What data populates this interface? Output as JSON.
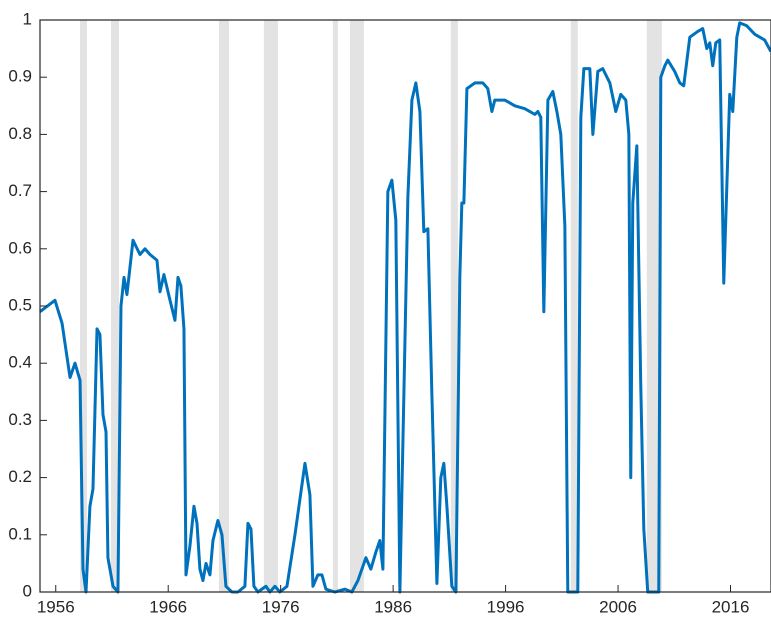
{
  "chart_data": {
    "type": "line",
    "x": [
      1954.6,
      1955.93,
      1956.56,
      1957.27,
      1957.71,
      1958.16,
      1958.42,
      1958.69,
      1959.04,
      1959.31,
      1959.67,
      1959.93,
      1960.2,
      1960.47,
      1960.64,
      1961.09,
      1961.53,
      1961.8,
      1962.07,
      1962.33,
      1962.87,
      1963.49,
      1963.93,
      1964.38,
      1965.0,
      1965.27,
      1965.62,
      1966.16,
      1966.6,
      1966.87,
      1967.13,
      1967.4,
      1967.58,
      1967.93,
      1968.29,
      1968.56,
      1968.82,
      1969.09,
      1969.36,
      1969.71,
      1969.98,
      1970.42,
      1970.78,
      1971.13,
      1971.67,
      1972.2,
      1972.82,
      1973.09,
      1973.36,
      1973.62,
      1973.98,
      1974.33,
      1974.69,
      1975.04,
      1975.49,
      1975.93,
      1976.56,
      1977.27,
      1978.16,
      1978.6,
      1978.87,
      1979.31,
      1979.67,
      1980.02,
      1980.82,
      1981.71,
      1982.33,
      1982.87,
      1983.58,
      1984.02,
      1984.47,
      1984.82,
      1985.09,
      1985.53,
      1985.89,
      1986.24,
      1986.6,
      1987.31,
      1987.67,
      1988.02,
      1988.38,
      1988.73,
      1989.09,
      1989.44,
      1989.89,
      1990.24,
      1990.51,
      1990.78,
      1991.22,
      1991.58,
      1991.93,
      1992.11,
      1992.29,
      1992.56,
      1993.27,
      1993.98,
      1994.42,
      1994.78,
      1995.04,
      1995.93,
      1996.38,
      1996.82,
      1997.71,
      1998.6,
      1998.87,
      1999.13,
      1999.4,
      1999.76,
      2000.2,
      2000.56,
      2000.91,
      2001.27,
      2001.53,
      2002.42,
      2002.69,
      2002.96,
      2003.49,
      2003.76,
      2004.2,
      2004.64,
      2005.27,
      2005.8,
      2006.24,
      2006.69,
      2006.96,
      2007.13,
      2007.31,
      2007.67,
      2008.02,
      2008.29,
      2008.64,
      2009.27,
      2009.62,
      2009.8,
      2010.16,
      2010.42,
      2011.04,
      2011.49,
      2011.84,
      2012.38,
      2013.09,
      2013.53,
      2013.89,
      2014.16,
      2014.42,
      2014.69,
      2015.04,
      2015.4,
      2015.93,
      2016.2,
      2016.56,
      2016.82,
      2017.44,
      2018.16,
      2019.04,
      2019.58
    ],
    "series": [
      {
        "color": "#0072bd",
        "values": [
          0.49,
          0.51,
          0.47,
          0.375,
          0.4,
          0.37,
          0.04,
          0.0,
          0.15,
          0.18,
          0.46,
          0.45,
          0.31,
          0.28,
          0.06,
          0.01,
          0.0,
          0.5,
          0.55,
          0.52,
          0.615,
          0.59,
          0.6,
          0.59,
          0.58,
          0.525,
          0.555,
          0.51,
          0.475,
          0.55,
          0.535,
          0.46,
          0.03,
          0.08,
          0.15,
          0.12,
          0.04,
          0.02,
          0.05,
          0.03,
          0.09,
          0.125,
          0.1,
          0.01,
          0.0,
          0.0,
          0.01,
          0.12,
          0.11,
          0.01,
          0.0,
          0.005,
          0.01,
          0.0,
          0.01,
          0.0,
          0.01,
          0.1,
          0.225,
          0.17,
          0.01,
          0.03,
          0.03,
          0.005,
          0.0,
          0.005,
          0.0,
          0.02,
          0.06,
          0.04,
          0.07,
          0.09,
          0.04,
          0.7,
          0.72,
          0.65,
          0.0,
          0.69,
          0.86,
          0.89,
          0.84,
          0.63,
          0.635,
          0.35,
          0.015,
          0.2,
          0.225,
          0.15,
          0.01,
          0.0,
          0.55,
          0.68,
          0.68,
          0.88,
          0.89,
          0.89,
          0.88,
          0.84,
          0.86,
          0.86,
          0.855,
          0.85,
          0.845,
          0.835,
          0.84,
          0.83,
          0.49,
          0.86,
          0.875,
          0.84,
          0.8,
          0.64,
          0.0,
          0.0,
          0.83,
          0.915,
          0.915,
          0.8,
          0.91,
          0.915,
          0.89,
          0.84,
          0.87,
          0.86,
          0.8,
          0.2,
          0.68,
          0.78,
          0.36,
          0.11,
          0.0,
          0.0,
          0.0,
          0.9,
          0.92,
          0.93,
          0.91,
          0.89,
          0.885,
          0.97,
          0.98,
          0.985,
          0.95,
          0.96,
          0.92,
          0.96,
          0.965,
          0.54,
          0.87,
          0.84,
          0.97,
          0.995,
          0.99,
          0.975,
          0.965,
          0.945
        ]
      }
    ],
    "shaded_periods": [
      [
        1958.16,
        1958.78
      ],
      [
        1960.91,
        1961.62
      ],
      [
        1970.51,
        1971.4
      ],
      [
        1974.51,
        1975.76
      ],
      [
        1980.64,
        1981.09
      ],
      [
        1982.16,
        1983.4
      ],
      [
        1991.13,
        1991.76
      ],
      [
        2001.8,
        2002.42
      ],
      [
        2008.56,
        2009.89
      ]
    ],
    "shade_color": "#e3e3e3",
    "xlim": [
      1954.6,
      2019.6
    ],
    "xticks": [
      1956,
      1966,
      1976,
      1986,
      1996,
      2006,
      2016
    ],
    "ylim": [
      0,
      1
    ],
    "yticks": [
      0,
      0.1,
      0.2,
      0.3,
      0.4,
      0.5,
      0.6,
      0.7,
      0.8,
      0.9,
      1
    ]
  }
}
